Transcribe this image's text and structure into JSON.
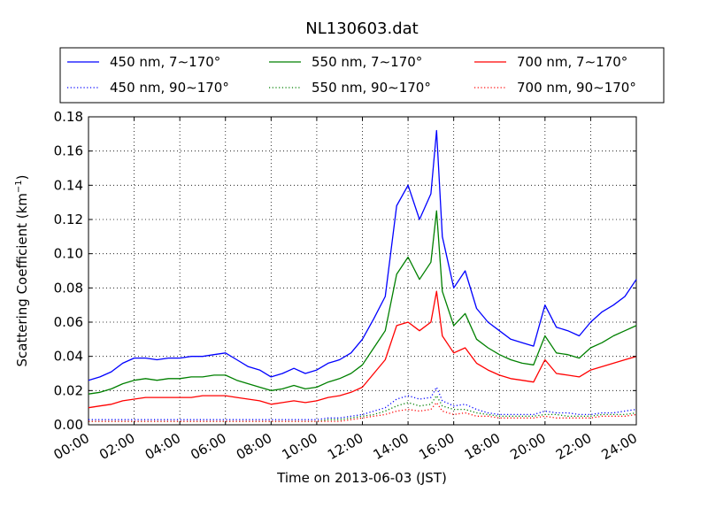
{
  "chart_data": {
    "type": "line",
    "title": "NL130603.dat",
    "xlabel": "Time on 2013-06-03 (JST)",
    "ylabel_main": "Scattering Coefficient (km",
    "ylabel_sup": "−1",
    "ylabel_tail": ")",
    "xlim": [
      "00:00",
      "24:00"
    ],
    "ylim": [
      0,
      0.18
    ],
    "grid": true,
    "legend_position": "top",
    "x_ticks": [
      "00:00",
      "02:00",
      "04:00",
      "06:00",
      "08:00",
      "10:00",
      "12:00",
      "14:00",
      "16:00",
      "18:00",
      "20:00",
      "22:00",
      "24:00"
    ],
    "y_ticks": [
      "0.00",
      "0.02",
      "0.04",
      "0.06",
      "0.08",
      "0.10",
      "0.12",
      "0.14",
      "0.16",
      "0.18"
    ],
    "x": [
      "00:00",
      "00:30",
      "01:00",
      "01:30",
      "02:00",
      "02:30",
      "03:00",
      "03:30",
      "04:00",
      "04:30",
      "05:00",
      "05:30",
      "06:00",
      "06:30",
      "07:00",
      "07:30",
      "08:00",
      "08:30",
      "09:00",
      "09:30",
      "10:00",
      "10:30",
      "11:00",
      "11:30",
      "12:00",
      "12:30",
      "13:00",
      "13:30",
      "14:00",
      "14:30",
      "15:00",
      "15:15",
      "15:30",
      "16:00",
      "16:30",
      "17:00",
      "17:30",
      "18:00",
      "18:30",
      "19:00",
      "19:30",
      "20:00",
      "20:30",
      "21:00",
      "21:30",
      "22:00",
      "22:30",
      "23:00",
      "23:30",
      "24:00"
    ],
    "series": [
      {
        "name": "450 nm, 7∼170°",
        "color": "#0000ff",
        "style": "solid",
        "values": [
          0.026,
          0.028,
          0.031,
          0.036,
          0.039,
          0.039,
          0.038,
          0.039,
          0.039,
          0.04,
          0.04,
          0.041,
          0.042,
          0.038,
          0.034,
          0.032,
          0.028,
          0.03,
          0.033,
          0.03,
          0.032,
          0.036,
          0.038,
          0.042,
          0.05,
          0.062,
          0.075,
          0.128,
          0.14,
          0.12,
          0.135,
          0.172,
          0.11,
          0.08,
          0.09,
          0.068,
          0.06,
          0.055,
          0.05,
          0.048,
          0.046,
          0.07,
          0.057,
          0.055,
          0.052,
          0.06,
          0.066,
          0.07,
          0.075,
          0.085
        ]
      },
      {
        "name": "450 nm, 90∼170°",
        "color": "#0000ff",
        "style": "dotted",
        "values": [
          0.003,
          0.003,
          0.003,
          0.003,
          0.003,
          0.003,
          0.003,
          0.003,
          0.003,
          0.003,
          0.003,
          0.003,
          0.003,
          0.003,
          0.003,
          0.003,
          0.003,
          0.003,
          0.003,
          0.003,
          0.003,
          0.004,
          0.004,
          0.005,
          0.006,
          0.008,
          0.01,
          0.015,
          0.017,
          0.015,
          0.016,
          0.022,
          0.014,
          0.011,
          0.012,
          0.009,
          0.007,
          0.006,
          0.006,
          0.006,
          0.006,
          0.008,
          0.007,
          0.007,
          0.006,
          0.006,
          0.007,
          0.007,
          0.008,
          0.009
        ]
      },
      {
        "name": "550 nm, 7∼170°",
        "color": "#008000",
        "style": "solid",
        "values": [
          0.018,
          0.019,
          0.021,
          0.024,
          0.026,
          0.027,
          0.026,
          0.027,
          0.027,
          0.028,
          0.028,
          0.029,
          0.029,
          0.026,
          0.024,
          0.022,
          0.02,
          0.021,
          0.023,
          0.021,
          0.022,
          0.025,
          0.027,
          0.03,
          0.035,
          0.045,
          0.055,
          0.088,
          0.098,
          0.085,
          0.095,
          0.125,
          0.078,
          0.058,
          0.065,
          0.05,
          0.045,
          0.041,
          0.038,
          0.036,
          0.035,
          0.052,
          0.042,
          0.041,
          0.039,
          0.045,
          0.048,
          0.052,
          0.055,
          0.058
        ]
      },
      {
        "name": "550 nm, 90∼170°",
        "color": "#008000",
        "style": "dotted",
        "values": [
          0.002,
          0.002,
          0.002,
          0.002,
          0.002,
          0.002,
          0.002,
          0.002,
          0.002,
          0.002,
          0.002,
          0.002,
          0.002,
          0.002,
          0.002,
          0.002,
          0.002,
          0.002,
          0.002,
          0.002,
          0.002,
          0.003,
          0.003,
          0.004,
          0.005,
          0.006,
          0.008,
          0.011,
          0.013,
          0.011,
          0.012,
          0.017,
          0.011,
          0.009,
          0.009,
          0.007,
          0.006,
          0.005,
          0.005,
          0.005,
          0.005,
          0.006,
          0.006,
          0.005,
          0.005,
          0.005,
          0.006,
          0.006,
          0.006,
          0.007
        ]
      },
      {
        "name": "700 nm, 7∼170°",
        "color": "#ff0000",
        "style": "solid",
        "values": [
          0.01,
          0.011,
          0.012,
          0.014,
          0.015,
          0.016,
          0.016,
          0.016,
          0.016,
          0.016,
          0.017,
          0.017,
          0.017,
          0.016,
          0.015,
          0.014,
          0.012,
          0.013,
          0.014,
          0.013,
          0.014,
          0.016,
          0.017,
          0.019,
          0.022,
          0.03,
          0.038,
          0.058,
          0.06,
          0.055,
          0.06,
          0.078,
          0.052,
          0.042,
          0.045,
          0.036,
          0.032,
          0.029,
          0.027,
          0.026,
          0.025,
          0.038,
          0.03,
          0.029,
          0.028,
          0.032,
          0.034,
          0.036,
          0.038,
          0.04
        ]
      },
      {
        "name": "700 nm, 90∼170°",
        "color": "#ff0000",
        "style": "dotted",
        "values": [
          0.002,
          0.002,
          0.002,
          0.002,
          0.002,
          0.002,
          0.002,
          0.002,
          0.002,
          0.002,
          0.002,
          0.002,
          0.002,
          0.002,
          0.002,
          0.002,
          0.002,
          0.002,
          0.002,
          0.002,
          0.002,
          0.002,
          0.002,
          0.003,
          0.004,
          0.005,
          0.006,
          0.008,
          0.009,
          0.008,
          0.009,
          0.013,
          0.008,
          0.006,
          0.007,
          0.005,
          0.005,
          0.004,
          0.004,
          0.004,
          0.004,
          0.005,
          0.004,
          0.004,
          0.004,
          0.004,
          0.005,
          0.005,
          0.005,
          0.006
        ]
      }
    ]
  }
}
